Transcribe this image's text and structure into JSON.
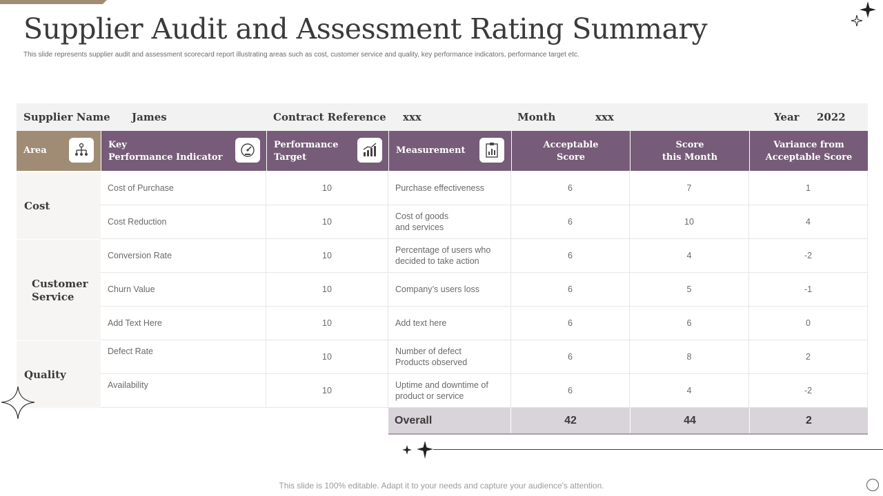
{
  "title": "Supplier Audit and Assessment Rating Summary",
  "subtitle": "This slide represents supplier audit and assessment scorecard report illustrating areas such as cost, customer service and quality, key performance indicators, performance target etc.",
  "info_bar": {
    "supplier_label": "Supplier Name",
    "supplier_value": "James",
    "contract_label": "Contract Reference",
    "contract_value": "xxx",
    "month_label": "Month",
    "month_value": "xxx",
    "year_label": "Year",
    "year_value": "2022"
  },
  "headers": {
    "area": "Area",
    "kpi_line1": "Key",
    "kpi_line2": "Performance Indicator",
    "target_line1": "Performance",
    "target_line2": "Target",
    "measurement": "Measurement",
    "acceptable_line1": "Acceptable",
    "acceptable_line2": "Score",
    "score_line1": "Score",
    "score_line2": "this Month",
    "variance_line1": "Variance from",
    "variance_line2": "Acceptable Score"
  },
  "areas": {
    "cost": "Cost",
    "cs_line1": "Customer",
    "cs_line2": "Service",
    "quality": "Quality"
  },
  "rows": [
    {
      "kpi": "Cost of Purchase",
      "target": "10",
      "m1": "Purchase effectiveness",
      "m2": "",
      "acceptable": "6",
      "score": "7",
      "variance": "1"
    },
    {
      "kpi": "Cost Reduction",
      "target": "10",
      "m1": "Cost of goods",
      "m2": "and services",
      "acceptable": "6",
      "score": "10",
      "variance": "4"
    },
    {
      "kpi": "Conversion  Rate",
      "target": "10",
      "m1": "Percentage of users who",
      "m2": "decided to take action",
      "acceptable": "6",
      "score": "4",
      "variance": "-2"
    },
    {
      "kpi": "Churn  Value",
      "target": "10",
      "m1": "Company’s users loss",
      "m2": "",
      "acceptable": "6",
      "score": "5",
      "variance": "-1"
    },
    {
      "kpi": "Add Text Here",
      "target": "10",
      "m1": "Add text here",
      "m2": "",
      "acceptable": "6",
      "score": "6",
      "variance": "0"
    },
    {
      "kpi": "Defect Rate",
      "target": "10",
      "m1": "Number of defect",
      "m2": "Products observed",
      "acceptable": "6",
      "score": "8",
      "variance": "2"
    },
    {
      "kpi": "Availability",
      "target": "10",
      "m1": "Uptime and downtime  of",
      "m2": "product or service",
      "acceptable": "6",
      "score": "4",
      "variance": "-2"
    }
  ],
  "overall": {
    "label": "Overall",
    "acceptable": "42",
    "score": "44",
    "variance": "2"
  },
  "footer": "This slide is 100% editable. Adapt it to your needs and capture your audience's attention.",
  "colors": {
    "header_purple": "#765c78",
    "header_tan": "#a08c74",
    "overall_bg": "#d9d4d9"
  }
}
